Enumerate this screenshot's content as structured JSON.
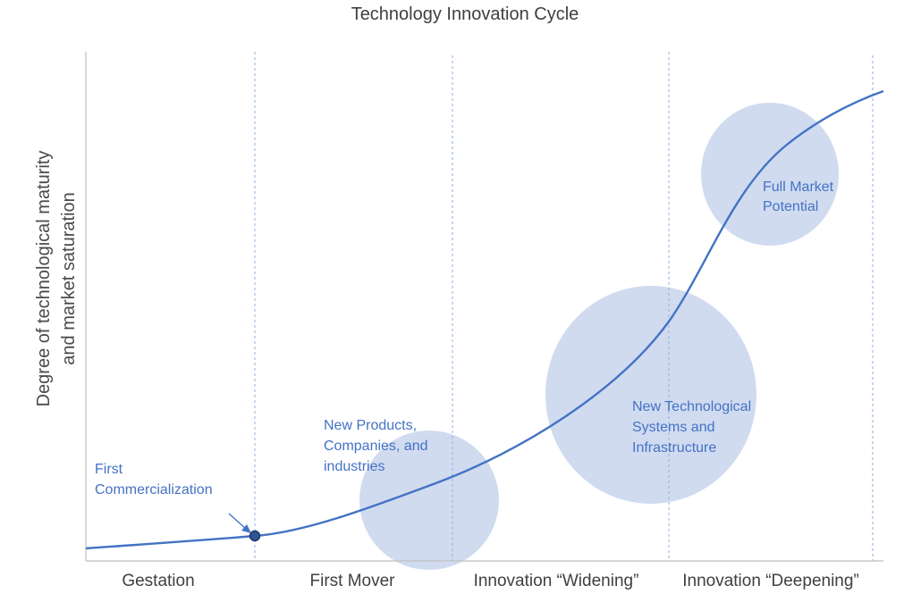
{
  "title": "Technology Innovation Cycle",
  "y_axis": {
    "label_line1": "Degree of technological maturity",
    "label_line2": "and market saturation"
  },
  "phases": [
    "Gestation",
    "First Mover",
    "Innovation “Widening”",
    "Innovation “Deepening”"
  ],
  "annotations": {
    "first_commercialization": [
      "First",
      "Commercialization"
    ],
    "new_products": [
      "New Products,",
      "Companies, and",
      "industries"
    ],
    "new_systems": [
      "New Technological",
      "Systems and",
      "Infrastructure"
    ],
    "full_market": [
      "Full Market",
      "Potential"
    ]
  },
  "colors": {
    "curve": "#4472c4",
    "bubble": "#d0dbf0",
    "text": "#404040",
    "annotation": "#4472c4",
    "axis": "#bfbfbf",
    "divider": "#8fb0de",
    "marker_fill": "#2f5597"
  }
}
